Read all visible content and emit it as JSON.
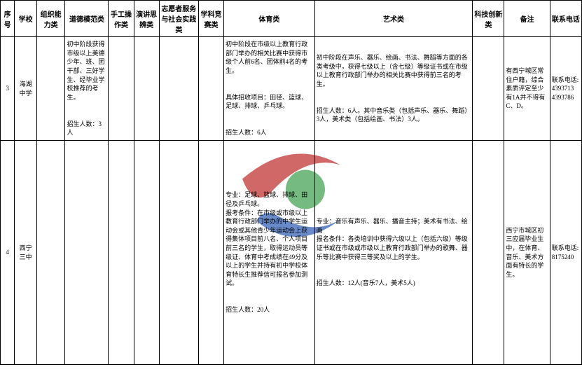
{
  "watermark": {
    "red": "#c94d4d",
    "green": "#5cae6b",
    "blue": "#4d76c0"
  },
  "columns": [
    "序号",
    "学校",
    "组织能力类",
    "道德模范类",
    "手工操作类",
    "演讲思辨类",
    "志愿者服务与社会实践类",
    "学科竞赛类",
    "体育类",
    "艺术类",
    "科技创新类",
    "备注",
    "联系电话"
  ],
  "rows": [
    {
      "seq": "3",
      "school": "海湖中学",
      "org": "",
      "moral": "初中阶段获得市级以上美德少年、班、团干部、三好学生、经毕业学校推荐的考生。\n\n招生人数：3人",
      "craft": "",
      "speech": "",
      "volunteer": "",
      "subject": "",
      "sports": "初中阶段在市级以上教育行政部门举办的相关比赛中获得市级个人前6名、团体前4名的考生。\n\n具体招收项目：田径、篮球、足球、排球、乒乓球。\n\n招生人数：6人",
      "art": "初中阶段在声乐、器乐、绘画、书法、舞蹈等方面的各类考级中，获得七级以上（含七级）等级证书或在市级以上教育行政部门举办的相关比赛中获得前三名的考生。\n\n招生人数：6人。其中音乐类（包括声乐、器乐、舞蹈）3人，美术类（包括绘画、书法）3人。",
      "sci": "",
      "note": "有西宁城区常住户籍，综合素质评定至少有1A并不得有C、D。",
      "phone": "联系电话:\n4393713\n4393786"
    },
    {
      "seq": "4",
      "school": "西宁三中",
      "org": "",
      "moral": "",
      "craft": "",
      "speech": "",
      "volunteer": "",
      "subject": "",
      "sports": "专业：足球、篮球、排球、田径及乒乓球。\n报考条件：在市级或市级以上教育行政部门举办的中学生运动会或其他青少年运动会上获得集体项目前八名、个人项目前三名的学生，取得运动员等级证、体育中考成绩在49分及以上的学生并持有初中学校体育特长生推荐信可报名参加测试。\n\n招生人数：20人",
      "art": "专业：音乐有声乐、器乐、播音主持；美术有书法、绘画\n报名条件：各类培训中获得六级以上（包括六级）等级证书或在市级或市级以上教育行政部门举办的歌舞、器乐等比赛中获得三等奖及以上的学生。\n\n招生人数：12人(音乐7人，美术5人)",
      "sci": "",
      "note": "西宁市城区初三应届毕业生中，在体育、音乐、美术方面有特长的学生。",
      "phone": "联系电话:\n8175240"
    }
  ]
}
